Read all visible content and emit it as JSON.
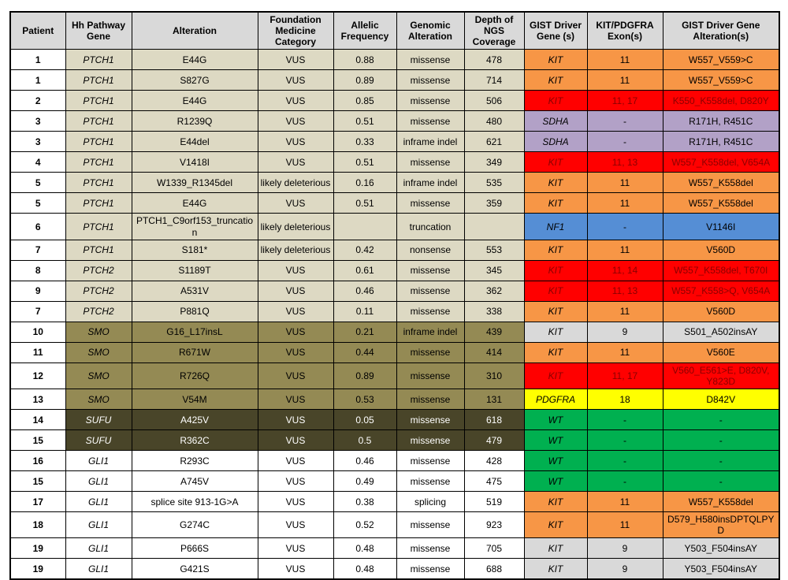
{
  "colors": {
    "header": "#d9d9d9",
    "tan": "#ddd9c3",
    "olive": "#948a54",
    "darkolive": "#494529",
    "white": "#ffffff",
    "orange": "#f79646",
    "red": "#ff0000",
    "red_text": "#8b0000",
    "purple": "#b2a1c7",
    "blue": "#558ed5",
    "yellow": "#ffff00",
    "green": "#00b050",
    "gray": "#d9d9d9",
    "darkolive_text": "#ffffff"
  },
  "table": {
    "headers": [
      {
        "key": "patient",
        "label": "Patient"
      },
      {
        "key": "gene",
        "label": "Hh Pathway Gene"
      },
      {
        "key": "alteration",
        "label": "Alteration"
      },
      {
        "key": "category",
        "label": "Foundation Medicine Category"
      },
      {
        "key": "freq",
        "label": "Allelic Frequency"
      },
      {
        "key": "genomic",
        "label": "Genomic Alteration"
      },
      {
        "key": "depth",
        "label": "Depth of NGS Coverage"
      },
      {
        "key": "driver",
        "label": "GIST Driver Gene (s)"
      },
      {
        "key": "exons",
        "label": "KIT/PDGFRA Exon(s)"
      },
      {
        "key": "driver_alt",
        "label": "GIST Driver Gene Alteration(s)"
      }
    ],
    "rows": [
      {
        "patient": "1",
        "gene": "PTCH1",
        "alteration": "E44G",
        "category": "VUS",
        "freq": "0.88",
        "genomic": "missense",
        "depth": "478",
        "driver": "KIT",
        "exons": "11",
        "driver_alt": "W557_V559>C",
        "group": "tan",
        "driver_color": "orange"
      },
      {
        "patient": "1",
        "gene": "PTCH1",
        "alteration": "S827G",
        "category": "VUS",
        "freq": "0.89",
        "genomic": "missense",
        "depth": "714",
        "driver": "KIT",
        "exons": "11",
        "driver_alt": "W557_V559>C",
        "group": "tan",
        "driver_color": "orange"
      },
      {
        "patient": "2",
        "gene": "PTCH1",
        "alteration": "E44G",
        "category": "VUS",
        "freq": "0.85",
        "genomic": "missense",
        "depth": "506",
        "driver": "KIT",
        "exons": "11, 17",
        "driver_alt": "K550_K558del, D820Y",
        "group": "tan",
        "driver_color": "red"
      },
      {
        "patient": "3",
        "gene": "PTCH1",
        "alteration": "R1239Q",
        "category": "VUS",
        "freq": "0.51",
        "genomic": "missense",
        "depth": "480",
        "driver": "SDHA",
        "exons": "-",
        "driver_alt": "R171H, R451C",
        "group": "tan",
        "driver_color": "purple"
      },
      {
        "patient": "3",
        "gene": "PTCH1",
        "alteration": "E44del",
        "category": "VUS",
        "freq": "0.33",
        "genomic": "inframe indel",
        "depth": "621",
        "driver": "SDHA",
        "exons": "-",
        "driver_alt": "R171H, R451C",
        "group": "tan",
        "driver_color": "purple"
      },
      {
        "patient": "4",
        "gene": "PTCH1",
        "alteration": "V1418I",
        "category": "VUS",
        "freq": "0.51",
        "genomic": "missense",
        "depth": "349",
        "driver": "KIT",
        "exons": "11, 13",
        "driver_alt": "W557_K558del, V654A",
        "group": "tan",
        "driver_color": "red"
      },
      {
        "patient": "5",
        "gene": "PTCH1",
        "alteration": "W1339_R1345del",
        "category": "likely deleterious",
        "freq": "0.16",
        "genomic": "inframe indel",
        "depth": "535",
        "driver": "KIT",
        "exons": "11",
        "driver_alt": "W557_K558del",
        "group": "tan",
        "driver_color": "orange"
      },
      {
        "patient": "5",
        "gene": "PTCH1",
        "alteration": "E44G",
        "category": "VUS",
        "freq": "0.51",
        "genomic": "missense",
        "depth": "359",
        "driver": "KIT",
        "exons": "11",
        "driver_alt": "W557_K558del",
        "group": "tan",
        "driver_color": "orange"
      },
      {
        "patient": "6",
        "gene": "PTCH1",
        "alteration": "PTCH1_C9orf153_truncation",
        "category": "likely deleterious",
        "freq": "",
        "genomic": "truncation",
        "depth": "",
        "driver": "NF1",
        "exons": "-",
        "driver_alt": "V1146I",
        "group": "tan",
        "driver_color": "blue"
      },
      {
        "patient": "7",
        "gene": "PTCH1",
        "alteration": "S181*",
        "category": "likely deleterious",
        "freq": "0.42",
        "genomic": "nonsense",
        "depth": "553",
        "driver": "KIT",
        "exons": "11",
        "driver_alt": "V560D",
        "group": "tan",
        "driver_color": "orange"
      },
      {
        "patient": "8",
        "gene": "PTCH2",
        "alteration": "S1189T",
        "category": "VUS",
        "freq": "0.61",
        "genomic": "missense",
        "depth": "345",
        "driver": "KIT",
        "exons": "11, 14",
        "driver_alt": "W557_K558del, T670I",
        "group": "tan",
        "driver_color": "red"
      },
      {
        "patient": "9",
        "gene": "PTCH2",
        "alteration": "A531V",
        "category": "VUS",
        "freq": "0.46",
        "genomic": "missense",
        "depth": "362",
        "driver": "KIT",
        "exons": "11, 13",
        "driver_alt": "W557_K558>Q, V654A",
        "group": "tan",
        "driver_color": "red"
      },
      {
        "patient": "7",
        "gene": "PTCH2",
        "alteration": "P881Q",
        "category": "VUS",
        "freq": "0.11",
        "genomic": "missense",
        "depth": "338",
        "driver": "KIT",
        "exons": "11",
        "driver_alt": "V560D",
        "group": "tan",
        "driver_color": "orange"
      },
      {
        "patient": "10",
        "gene": "SMO",
        "alteration": "G16_L17insL",
        "category": "VUS",
        "freq": "0.21",
        "genomic": "inframe indel",
        "depth": "439",
        "driver": "KIT",
        "exons": "9",
        "driver_alt": "S501_A502insAY",
        "group": "olive",
        "driver_color": "gray"
      },
      {
        "patient": "11",
        "gene": "SMO",
        "alteration": "R671W",
        "category": "VUS",
        "freq": "0.44",
        "genomic": "missense",
        "depth": "414",
        "driver": "KIT",
        "exons": "11",
        "driver_alt": "V560E",
        "group": "olive",
        "driver_color": "orange"
      },
      {
        "patient": "12",
        "gene": "SMO",
        "alteration": "R726Q",
        "category": "VUS",
        "freq": "0.89",
        "genomic": "missense",
        "depth": "310",
        "driver": "KIT",
        "exons": "11, 17",
        "driver_alt": "V560_E561>E, D820V, Y823D",
        "group": "olive",
        "driver_color": "red"
      },
      {
        "patient": "13",
        "gene": "SMO",
        "alteration": "V54M",
        "category": "VUS",
        "freq": "0.53",
        "genomic": "missense",
        "depth": "131",
        "driver": "PDGFRA",
        "exons": "18",
        "driver_alt": "D842V",
        "group": "olive",
        "driver_color": "yellow"
      },
      {
        "patient": "14",
        "gene": "SUFU",
        "alteration": "A425V",
        "category": "VUS",
        "freq": "0.05",
        "genomic": "missense",
        "depth": "618",
        "driver": "WT",
        "exons": "-",
        "driver_alt": "-",
        "group": "darkolive",
        "driver_color": "green"
      },
      {
        "patient": "15",
        "gene": "SUFU",
        "alteration": "R362C",
        "category": "VUS",
        "freq": "0.5",
        "genomic": "missense",
        "depth": "479",
        "driver": "WT",
        "exons": "-",
        "driver_alt": "-",
        "group": "darkolive",
        "driver_color": "green"
      },
      {
        "patient": "16",
        "gene": "GLI1",
        "alteration": "R293C",
        "category": "VUS",
        "freq": "0.46",
        "genomic": "missense",
        "depth": "428",
        "driver": "WT",
        "exons": "-",
        "driver_alt": "-",
        "group": "white",
        "driver_color": "green"
      },
      {
        "patient": "15",
        "gene": "GLI1",
        "alteration": "A745V",
        "category": "VUS",
        "freq": "0.49",
        "genomic": "missense",
        "depth": "475",
        "driver": "WT",
        "exons": "-",
        "driver_alt": "-",
        "group": "white",
        "driver_color": "green"
      },
      {
        "patient": "17",
        "gene": "GLI1",
        "alteration": "splice site 913-1G>A",
        "category": "VUS",
        "freq": "0.38",
        "genomic": "splicing",
        "depth": "519",
        "driver": "KIT",
        "exons": "11",
        "driver_alt": "W557_K558del",
        "group": "white",
        "driver_color": "orange"
      },
      {
        "patient": "18",
        "gene": "GLI1",
        "alteration": "G274C",
        "category": "VUS",
        "freq": "0.52",
        "genomic": "missense",
        "depth": "923",
        "driver": "KIT",
        "exons": "11",
        "driver_alt": "D579_H580insDPTQLPYD",
        "group": "white",
        "driver_color": "orange"
      },
      {
        "patient": "19",
        "gene": "GLI1",
        "alteration": "P666S",
        "category": "VUS",
        "freq": "0.48",
        "genomic": "missense",
        "depth": "705",
        "driver": "KIT",
        "exons": "9",
        "driver_alt": "Y503_F504insAY",
        "group": "white",
        "driver_color": "gray"
      },
      {
        "patient": "19",
        "gene": "GLI1",
        "alteration": "G421S",
        "category": "VUS",
        "freq": "0.48",
        "genomic": "missense",
        "depth": "688",
        "driver": "KIT",
        "exons": "9",
        "driver_alt": "Y503_F504insAY",
        "group": "white",
        "driver_color": "gray"
      }
    ]
  }
}
